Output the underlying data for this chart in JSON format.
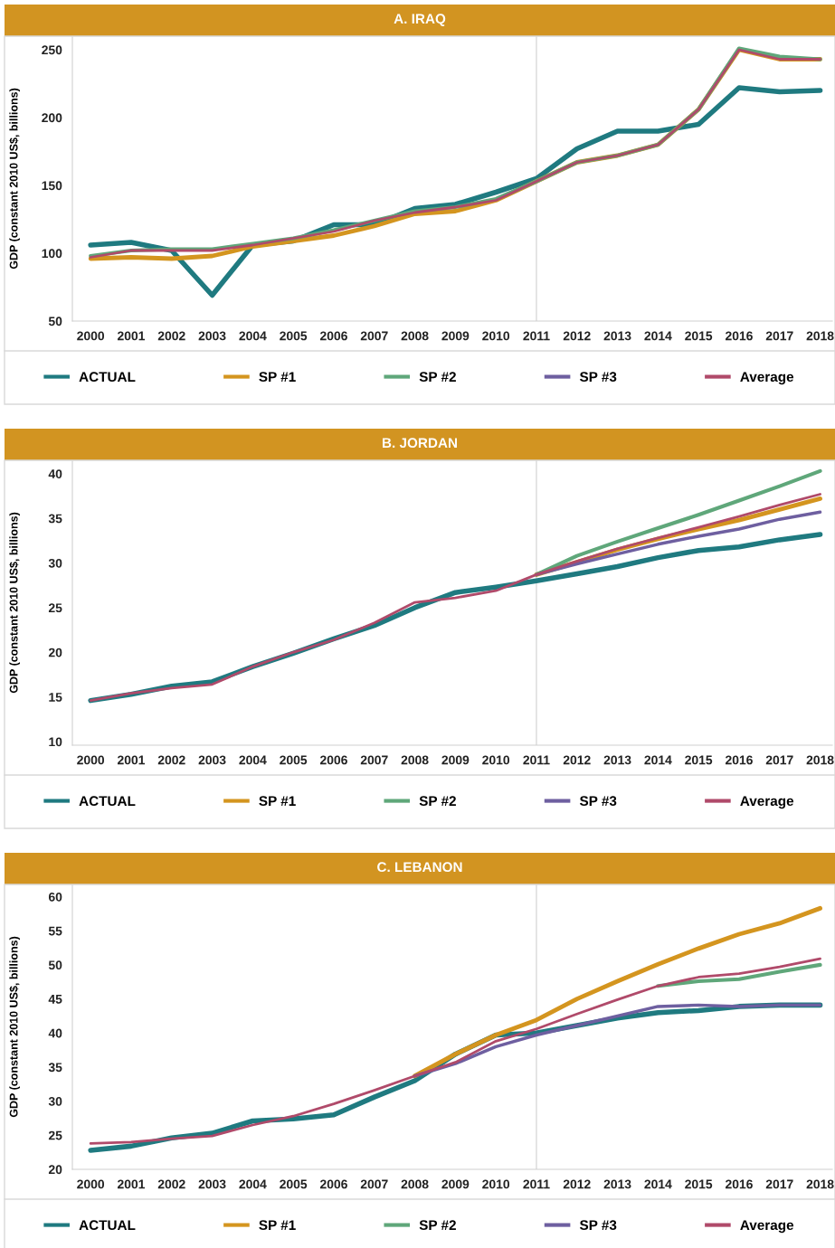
{
  "chart_data": [
    {
      "type": "line",
      "title": "A. IRAQ",
      "ylabel": "GDP (constant 2010 US$, billions)",
      "categories": [
        "2000",
        "2001",
        "2002",
        "2003",
        "2004",
        "2005",
        "2006",
        "2007",
        "2008",
        "2009",
        "2010",
        "2011",
        "2012",
        "2013",
        "2014",
        "2015",
        "2016",
        "2017",
        "2018"
      ],
      "ylim": [
        50,
        260
      ],
      "yticks": [
        50,
        100,
        150,
        200,
        250
      ],
      "legend": "bottom",
      "grid": false,
      "ref_lines": [
        {
          "axis": "x",
          "value": "2011",
          "color": "#d9d9d9"
        }
      ],
      "series": [
        {
          "name": "ACTUAL",
          "color": "#1f7a80",
          "values": [
            106,
            108,
            102,
            69,
            106,
            109,
            121,
            121,
            133,
            136,
            145,
            155,
            177,
            190,
            190,
            195,
            222,
            219,
            220
          ]
        },
        {
          "name": "SP #1",
          "color": "#d4951f",
          "values": [
            96,
            97,
            96,
            98,
            105,
            109,
            113,
            120,
            129,
            131,
            139,
            153,
            167,
            172,
            180,
            206,
            250,
            243,
            243
          ]
        },
        {
          "name": "SP #2",
          "color": "#5fa77a",
          "values": [
            98,
            102,
            103,
            103,
            107,
            111,
            117,
            124,
            131,
            134,
            140,
            153,
            167,
            172,
            180,
            206,
            251,
            245,
            243
          ]
        },
        {
          "name": "SP #3",
          "color": "#6e5fa0",
          "values": [
            null,
            null,
            null,
            null,
            null,
            null,
            null,
            null,
            null,
            null,
            null,
            null,
            null,
            null,
            null,
            null,
            null,
            null,
            null
          ]
        },
        {
          "name": "Average",
          "color": "#b04a6a",
          "values": [
            97,
            102,
            102,
            102,
            106,
            111,
            116,
            124,
            130,
            134,
            139,
            153,
            167,
            172,
            180,
            206,
            250,
            243,
            243
          ]
        }
      ]
    },
    {
      "type": "line",
      "title": "B. JORDAN",
      "ylabel": "GDP (constant 2010 US$, billions)",
      "categories": [
        "2000",
        "2001",
        "2002",
        "2003",
        "2004",
        "2005",
        "2006",
        "2007",
        "2008",
        "2009",
        "2010",
        "2011",
        "2012",
        "2013",
        "2014",
        "2015",
        "2016",
        "2017",
        "2018"
      ],
      "ylim": [
        9.6,
        41.5
      ],
      "yticks": [
        10,
        15,
        20,
        25,
        30,
        35,
        40
      ],
      "legend": "bottom",
      "grid": false,
      "ref_lines": [
        {
          "axis": "x",
          "value": "2011",
          "color": "#d9d9d9"
        }
      ],
      "series": [
        {
          "name": "ACTUAL",
          "color": "#1f7a80",
          "values": [
            14.6,
            15.3,
            16.2,
            16.7,
            18.4,
            19.9,
            21.5,
            23.0,
            25.0,
            26.7,
            27.3,
            28.0,
            28.8,
            29.6,
            30.6,
            31.4,
            31.8,
            32.6,
            33.2
          ]
        },
        {
          "name": "SP #1",
          "color": "#d4951f",
          "values": [
            null,
            null,
            null,
            null,
            null,
            null,
            null,
            null,
            null,
            null,
            null,
            28.7,
            30.1,
            31.5,
            32.7,
            33.8,
            34.8,
            36.0,
            37.2
          ]
        },
        {
          "name": "SP #2",
          "color": "#5fa77a",
          "values": [
            null,
            null,
            null,
            null,
            null,
            null,
            null,
            null,
            null,
            null,
            null,
            28.7,
            30.8,
            32.4,
            33.9,
            35.4,
            37.0,
            38.6,
            40.3
          ]
        },
        {
          "name": "SP #3",
          "color": "#6e5fa0",
          "values": [
            null,
            null,
            null,
            null,
            null,
            null,
            null,
            null,
            null,
            null,
            null,
            28.7,
            29.9,
            31.0,
            32.1,
            33.0,
            33.8,
            34.9,
            35.7
          ]
        },
        {
          "name": "Average",
          "color": "#b04a6a",
          "values": [
            14.6,
            15.4,
            16.0,
            16.4,
            18.4,
            20.0,
            21.4,
            23.3,
            25.6,
            26.1,
            26.9,
            28.7,
            30.2,
            31.6,
            32.8,
            34.0,
            35.2,
            36.5,
            37.7
          ]
        }
      ]
    },
    {
      "type": "line",
      "title": "C. LEBANON",
      "ylabel": "GDP (constant 2010 US$, billions)",
      "categories": [
        "2000",
        "2001",
        "2002",
        "2003",
        "2004",
        "2005",
        "2006",
        "2007",
        "2008",
        "2009",
        "2010",
        "2011",
        "2012",
        "2013",
        "2014",
        "2015",
        "2016",
        "2017",
        "2018"
      ],
      "ylim": [
        20,
        61.8
      ],
      "yticks": [
        20,
        25,
        30,
        35,
        40,
        45,
        50,
        55,
        60
      ],
      "legend": "bottom",
      "grid": false,
      "ref_lines": [
        {
          "axis": "x",
          "value": "2011",
          "color": "#d9d9d9"
        }
      ],
      "series": [
        {
          "name": "ACTUAL",
          "color": "#1f7a80",
          "values": [
            22.8,
            23.4,
            24.6,
            25.3,
            27.1,
            27.4,
            28.0,
            30.6,
            33.0,
            36.9,
            39.7,
            40.0,
            41.1,
            42.2,
            43.0,
            43.3,
            43.9,
            44.1,
            44.1
          ]
        },
        {
          "name": "SP #1",
          "color": "#d4951f",
          "values": [
            null,
            null,
            null,
            null,
            null,
            null,
            null,
            null,
            33.7,
            36.9,
            39.7,
            41.9,
            45.0,
            47.6,
            50.1,
            52.4,
            54.5,
            56.1,
            58.3
          ]
        },
        {
          "name": "SP #2",
          "color": "#5fa77a",
          "values": [
            null,
            null,
            null,
            null,
            null,
            null,
            null,
            null,
            null,
            null,
            null,
            null,
            null,
            null,
            46.9,
            47.6,
            47.9,
            49.0,
            50.0
          ]
        },
        {
          "name": "SP #3",
          "color": "#6e5fa0",
          "values": [
            null,
            null,
            null,
            null,
            null,
            null,
            null,
            null,
            33.7,
            35.5,
            38.0,
            39.7,
            41.1,
            42.5,
            43.9,
            44.1,
            43.9,
            44.1,
            44.1
          ]
        },
        {
          "name": "Average",
          "color": "#b04a6a",
          "values": [
            23.8,
            24.0,
            24.5,
            24.9,
            26.5,
            27.8,
            29.6,
            31.6,
            33.7,
            35.7,
            38.8,
            40.6,
            42.8,
            44.9,
            46.9,
            48.2,
            48.7,
            49.7,
            50.9
          ]
        }
      ]
    }
  ]
}
